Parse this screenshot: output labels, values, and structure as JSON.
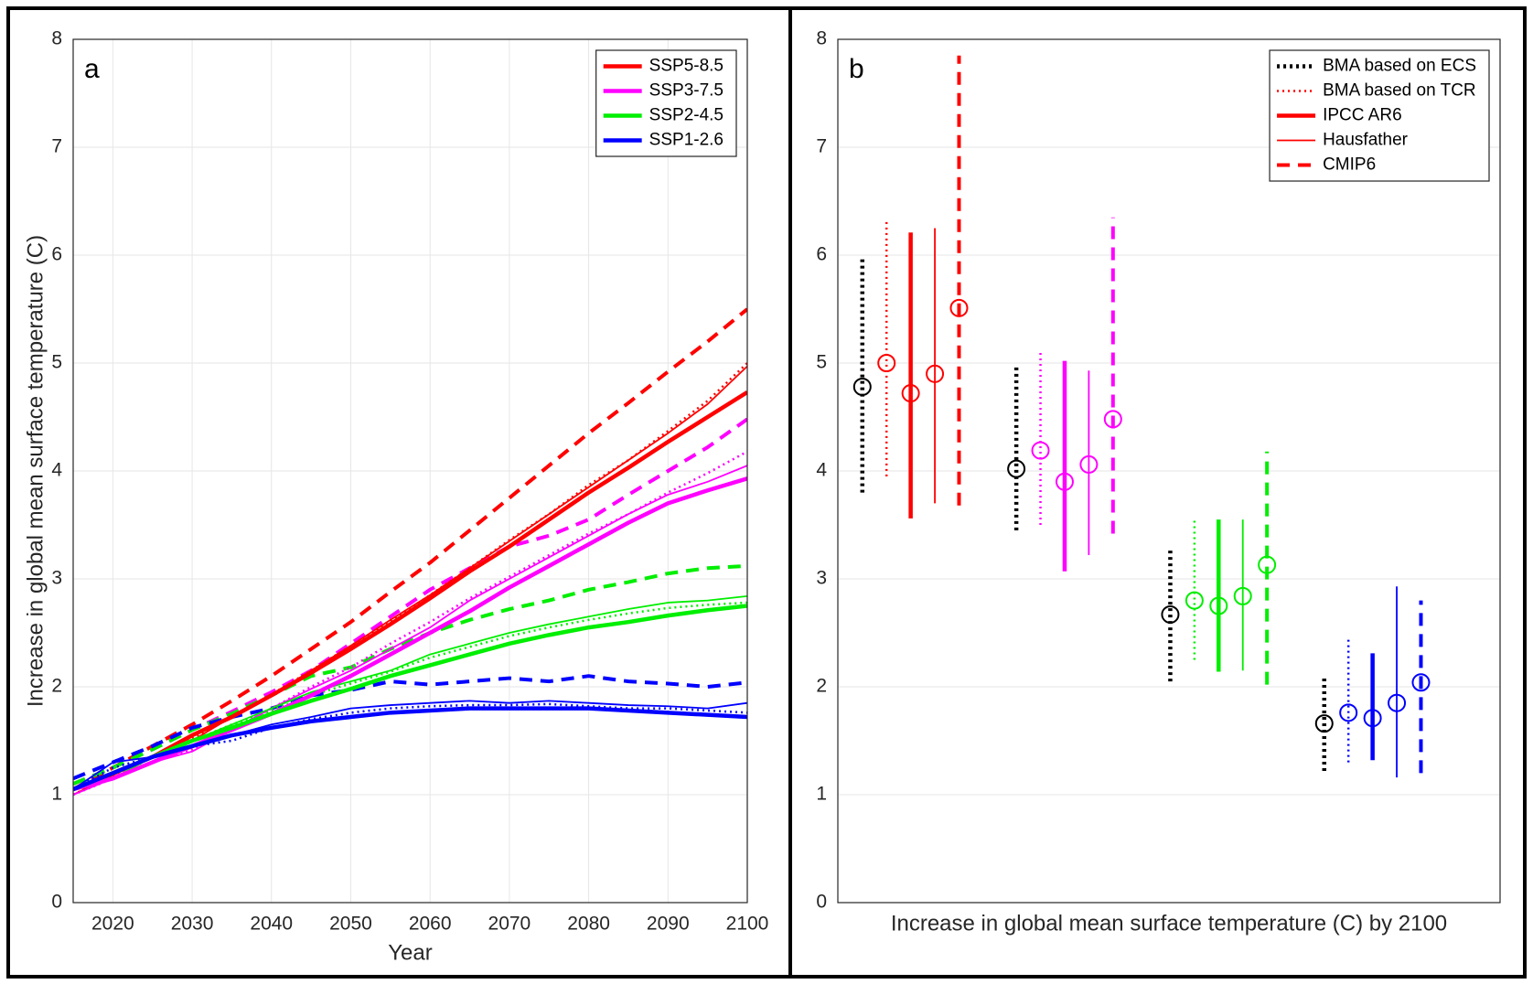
{
  "chart_data": [
    {
      "type": "line",
      "annotation": "a",
      "xlabel": "Year",
      "ylabel": "Increase in global mean surface temperature (C)",
      "x": [
        2015,
        2020,
        2025,
        2030,
        2035,
        2040,
        2045,
        2050,
        2055,
        2060,
        2065,
        2070,
        2075,
        2080,
        2085,
        2090,
        2095,
        2100
      ],
      "xlim": [
        2015,
        2100
      ],
      "xticks": [
        2020,
        2030,
        2040,
        2050,
        2060,
        2070,
        2080,
        2090,
        2100
      ],
      "ylim": [
        0,
        8
      ],
      "yticks": [
        0,
        1,
        2,
        3,
        4,
        5,
        6,
        7,
        8
      ],
      "grid": true,
      "legend_position": "upper right",
      "series": [
        {
          "color": "#ff0000",
          "style": "dashed",
          "values": [
            1.05,
            1.25,
            1.45,
            1.65,
            1.87,
            2.1,
            2.35,
            2.6,
            2.88,
            3.15,
            3.45,
            3.75,
            4.05,
            4.35,
            4.63,
            4.92,
            5.2,
            5.5
          ]
        },
        {
          "color": "#ff00ff",
          "style": "dashed",
          "values": [
            1.1,
            1.25,
            1.42,
            1.6,
            1.77,
            1.95,
            2.15,
            2.4,
            2.65,
            2.9,
            3.1,
            3.3,
            3.4,
            3.55,
            3.78,
            4.0,
            4.22,
            4.48
          ]
        },
        {
          "color": "#00ee00",
          "style": "dashed",
          "values": [
            1.1,
            1.25,
            1.42,
            1.6,
            1.75,
            1.92,
            2.1,
            2.18,
            2.35,
            2.5,
            2.62,
            2.72,
            2.8,
            2.9,
            2.97,
            3.05,
            3.1,
            3.12
          ]
        },
        {
          "color": "#0000ff",
          "style": "dashed",
          "values": [
            1.15,
            1.3,
            1.45,
            1.62,
            1.72,
            1.8,
            1.92,
            1.97,
            2.05,
            2.02,
            2.05,
            2.08,
            2.05,
            2.1,
            2.05,
            2.03,
            2.0,
            2.04
          ]
        },
        {
          "color": "#ff0000",
          "style": "dotted",
          "values": [
            1.0,
            1.18,
            1.35,
            1.52,
            1.72,
            1.93,
            2.15,
            2.38,
            2.6,
            2.85,
            3.1,
            3.36,
            3.6,
            3.87,
            4.1,
            4.37,
            4.65,
            5.0
          ]
        },
        {
          "color": "#ff00ff",
          "style": "dotted",
          "values": [
            1.0,
            1.15,
            1.3,
            1.42,
            1.6,
            1.8,
            2.0,
            2.18,
            2.4,
            2.6,
            2.82,
            3.02,
            3.22,
            3.42,
            3.6,
            3.8,
            3.98,
            4.18
          ]
        },
        {
          "color": "#00ee00",
          "style": "dotted",
          "values": [
            1.05,
            1.15,
            1.35,
            1.5,
            1.65,
            1.78,
            1.92,
            2.03,
            2.14,
            2.27,
            2.37,
            2.47,
            2.55,
            2.62,
            2.68,
            2.73,
            2.76,
            2.78
          ]
        },
        {
          "color": "#0000ff",
          "style": "dotted",
          "values": [
            1.05,
            1.25,
            1.35,
            1.45,
            1.5,
            1.62,
            1.7,
            1.76,
            1.8,
            1.82,
            1.83,
            1.83,
            1.84,
            1.82,
            1.8,
            1.8,
            1.78,
            1.76
          ]
        },
        {
          "color": "#ff0000",
          "style": "thin",
          "values": [
            1.0,
            1.18,
            1.35,
            1.5,
            1.72,
            1.92,
            2.15,
            2.38,
            2.62,
            2.85,
            3.1,
            3.35,
            3.6,
            3.85,
            4.1,
            4.35,
            4.62,
            4.97
          ]
        },
        {
          "color": "#ff00ff",
          "style": "thin",
          "values": [
            1.0,
            1.15,
            1.3,
            1.4,
            1.6,
            1.8,
            1.98,
            2.15,
            2.35,
            2.55,
            2.8,
            3.0,
            3.2,
            3.4,
            3.6,
            3.78,
            3.9,
            4.05
          ]
        },
        {
          "color": "#00ee00",
          "style": "thin",
          "values": [
            1.05,
            1.15,
            1.35,
            1.5,
            1.65,
            1.8,
            1.95,
            2.05,
            2.15,
            2.3,
            2.4,
            2.5,
            2.58,
            2.65,
            2.72,
            2.78,
            2.8,
            2.84
          ]
        },
        {
          "color": "#0000ff",
          "style": "thin",
          "values": [
            1.05,
            1.3,
            1.35,
            1.45,
            1.55,
            1.65,
            1.72,
            1.8,
            1.83,
            1.85,
            1.87,
            1.85,
            1.87,
            1.85,
            1.83,
            1.82,
            1.8,
            1.85
          ]
        },
        {
          "name": "SSP5-8.5",
          "color": "#ff0000",
          "style": "thick",
          "values": [
            1.05,
            1.2,
            1.35,
            1.55,
            1.72,
            1.92,
            2.13,
            2.35,
            2.58,
            2.82,
            3.07,
            3.3,
            3.55,
            3.8,
            4.03,
            4.27,
            4.5,
            4.73
          ]
        },
        {
          "name": "SSP3-7.5",
          "color": "#ff00ff",
          "style": "thick",
          "values": [
            1.05,
            1.15,
            1.3,
            1.45,
            1.6,
            1.75,
            1.92,
            2.1,
            2.3,
            2.5,
            2.7,
            2.92,
            3.12,
            3.32,
            3.52,
            3.7,
            3.82,
            3.93
          ]
        },
        {
          "name": "SSP2-4.5",
          "color": "#00ee00",
          "style": "thick",
          "values": [
            1.05,
            1.2,
            1.35,
            1.5,
            1.62,
            1.75,
            1.87,
            1.98,
            2.1,
            2.2,
            2.3,
            2.4,
            2.48,
            2.55,
            2.6,
            2.66,
            2.71,
            2.75
          ]
        },
        {
          "name": "SSP1-2.6",
          "color": "#0000ff",
          "style": "thick",
          "values": [
            1.05,
            1.2,
            1.35,
            1.45,
            1.55,
            1.62,
            1.68,
            1.72,
            1.76,
            1.78,
            1.8,
            1.8,
            1.8,
            1.8,
            1.78,
            1.76,
            1.74,
            1.72
          ]
        }
      ]
    },
    {
      "type": "errorbar",
      "annotation": "b",
      "xlabel": "Increase in global mean surface temperature (C) by 2100",
      "ylim": [
        0,
        8
      ],
      "yticks": [
        0,
        1,
        2,
        3,
        4,
        5,
        6,
        7,
        8
      ],
      "grid": true,
      "legend_position": "upper right",
      "group_colors": [
        "#ff0000",
        "#ff00ff",
        "#00ee00",
        "#0000ff"
      ],
      "series": [
        {
          "name": "BMA based on ECS",
          "color": "#000000",
          "style": "dotted-thick",
          "values": [
            4.78,
            4.02,
            2.67,
            1.66
          ],
          "low": [
            3.8,
            3.45,
            2.05,
            1.22
          ],
          "high": [
            5.97,
            4.98,
            3.28,
            2.1
          ]
        },
        {
          "name": "BMA based on TCR",
          "style": "dotted",
          "values": [
            5.0,
            4.19,
            2.8,
            1.76
          ],
          "low": [
            3.95,
            3.5,
            2.25,
            1.3
          ],
          "high": [
            6.33,
            5.12,
            3.55,
            2.45
          ]
        },
        {
          "name": "IPCC AR6",
          "style": "thick",
          "values": [
            4.72,
            3.9,
            2.75,
            1.71
          ],
          "low": [
            3.56,
            3.07,
            2.14,
            1.32
          ],
          "high": [
            6.21,
            5.02,
            3.55,
            2.31
          ]
        },
        {
          "name": "Hausfather",
          "style": "thin",
          "values": [
            4.9,
            4.06,
            2.84,
            1.85
          ],
          "low": [
            3.7,
            3.22,
            2.15,
            1.16
          ],
          "high": [
            6.25,
            4.93,
            3.55,
            2.93
          ]
        },
        {
          "name": "CMIP6",
          "style": "dashed",
          "values": [
            5.51,
            4.48,
            3.13,
            2.04
          ],
          "low": [
            3.68,
            3.42,
            2.02,
            1.2
          ],
          "high": [
            7.85,
            6.35,
            4.18,
            2.8
          ]
        }
      ]
    }
  ]
}
